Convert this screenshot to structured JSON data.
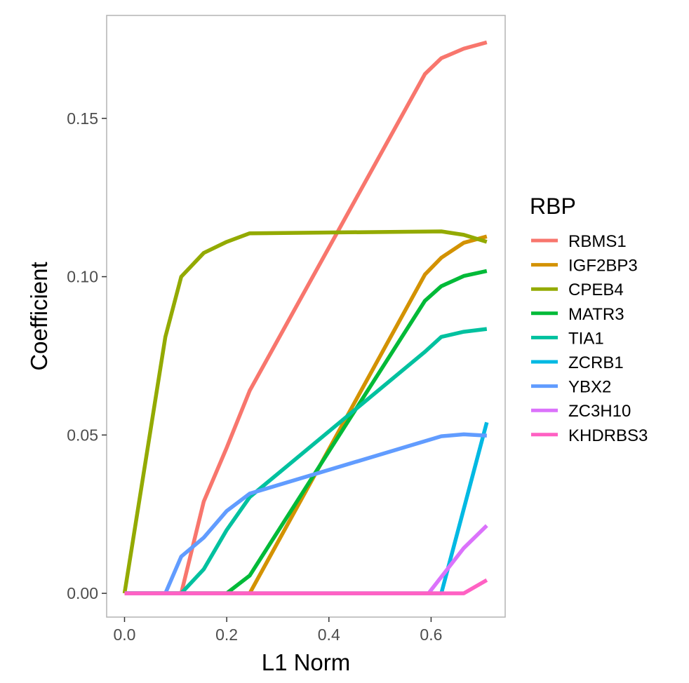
{
  "chart_data": {
    "type": "line",
    "title": "",
    "xlabel": "L1 Norm",
    "ylabel": "Coefficient",
    "xlim": [
      -0.035,
      0.745
    ],
    "ylim": [
      -0.0075,
      0.1825
    ],
    "xticks": [
      0.0,
      0.2,
      0.4,
      0.6
    ],
    "xtick_labels": [
      "0.0",
      "0.2",
      "0.4",
      "0.6"
    ],
    "yticks": [
      0.0,
      0.05,
      0.1,
      0.15
    ],
    "ytick_labels": [
      "0.00",
      "0.05",
      "0.10",
      "0.15"
    ],
    "grid": false,
    "legend": {
      "title": "RBP",
      "position": "right"
    },
    "series": [
      {
        "name": "RBMS1",
        "color": "#F8766D",
        "points": [
          [
            0,
            0
          ],
          [
            0.111,
            0
          ],
          [
            0.155,
            0.029
          ],
          [
            0.2,
            0.046
          ],
          [
            0.245,
            0.064
          ],
          [
            0.588,
            0.164
          ],
          [
            0.62,
            0.169
          ],
          [
            0.664,
            0.172
          ],
          [
            0.709,
            0.174
          ]
        ]
      },
      {
        "name": "IGF2BP3",
        "color": "#D39200",
        "points": [
          [
            0,
            0
          ],
          [
            0.245,
            0
          ],
          [
            0.588,
            0.1007
          ],
          [
            0.62,
            0.106
          ],
          [
            0.664,
            0.1107
          ],
          [
            0.709,
            0.1127
          ]
        ]
      },
      {
        "name": "CPEB4",
        "color": "#93AA00",
        "points": [
          [
            0,
            0
          ],
          [
            0.08,
            0.081
          ],
          [
            0.111,
            0.1
          ],
          [
            0.155,
            0.1075
          ],
          [
            0.2,
            0.111
          ],
          [
            0.245,
            0.1137
          ],
          [
            0.62,
            0.1143
          ],
          [
            0.664,
            0.1132
          ],
          [
            0.709,
            0.111
          ]
        ]
      },
      {
        "name": "MATR3",
        "color": "#00BA38",
        "points": [
          [
            0,
            0
          ],
          [
            0.2,
            0
          ],
          [
            0.245,
            0.0056
          ],
          [
            0.588,
            0.0924
          ],
          [
            0.62,
            0.097
          ],
          [
            0.664,
            0.1002
          ],
          [
            0.709,
            0.1018
          ]
        ]
      },
      {
        "name": "TIA1",
        "color": "#00C19F",
        "points": [
          [
            0,
            0
          ],
          [
            0.111,
            0
          ],
          [
            0.155,
            0.0076
          ],
          [
            0.2,
            0.02
          ],
          [
            0.245,
            0.0304
          ],
          [
            0.588,
            0.0763
          ],
          [
            0.62,
            0.081
          ],
          [
            0.664,
            0.0826
          ],
          [
            0.709,
            0.0835
          ]
        ]
      },
      {
        "name": "ZCRB1",
        "color": "#00B9E3",
        "points": [
          [
            0,
            0
          ],
          [
            0.62,
            0
          ],
          [
            0.709,
            0.054
          ]
        ]
      },
      {
        "name": "YBX2",
        "color": "#619CFF",
        "points": [
          [
            0,
            0
          ],
          [
            0.08,
            0
          ],
          [
            0.111,
            0.0116
          ],
          [
            0.155,
            0.0176
          ],
          [
            0.2,
            0.026
          ],
          [
            0.245,
            0.0315
          ],
          [
            0.62,
            0.0496
          ],
          [
            0.664,
            0.0502
          ],
          [
            0.709,
            0.0498
          ]
        ]
      },
      {
        "name": "ZC3H10",
        "color": "#DB72FB",
        "points": [
          [
            0,
            0
          ],
          [
            0.595,
            0
          ],
          [
            0.664,
            0.0143
          ],
          [
            0.709,
            0.0214
          ]
        ]
      },
      {
        "name": "KHDRBS3",
        "color": "#FF61C3",
        "points": [
          [
            0,
            0
          ],
          [
            0.664,
            0
          ],
          [
            0.709,
            0.0042
          ]
        ]
      }
    ]
  }
}
